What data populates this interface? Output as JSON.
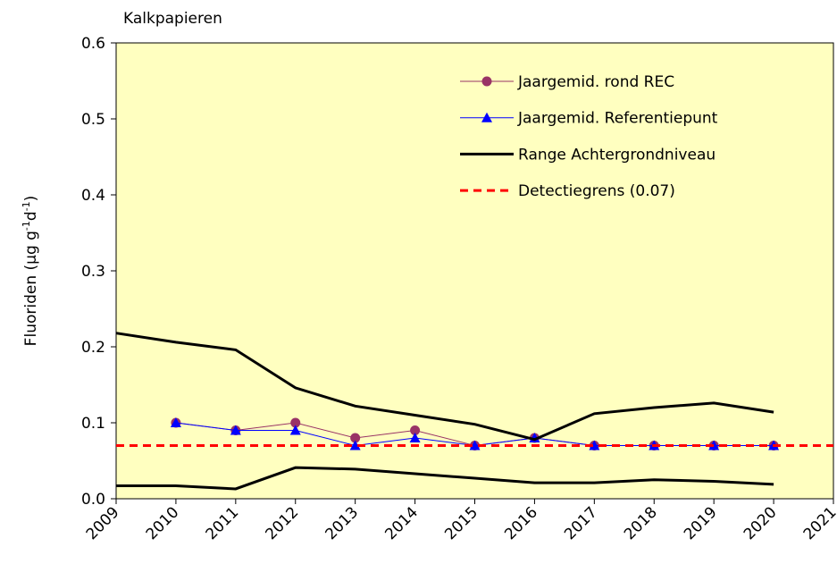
{
  "chart_data": {
    "type": "line",
    "title": "Kalkpapieren",
    "ylabel": [
      "Fluoriden  (µg g",
      "-1",
      "d",
      "-1",
      ")"
    ],
    "xlim": [
      2009,
      2021
    ],
    "xticks": [
      2009,
      2010,
      2011,
      2012,
      2013,
      2014,
      2015,
      2016,
      2017,
      2018,
      2019,
      2020,
      2021
    ],
    "ylim": [
      0,
      0.6
    ],
    "yticks": [
      {
        "value": 0,
        "label": "0.0"
      },
      0.1,
      0.2,
      0.3,
      0.4,
      0.5,
      0.6
    ],
    "background": "#ffffc0",
    "series": [
      {
        "name": "Jaargemid. rond REC",
        "color": "#993366",
        "marker": "circle",
        "dash": false,
        "width": 1,
        "x": [
          2010,
          2011,
          2012,
          2013,
          2014,
          2015,
          2016,
          2017,
          2018,
          2019,
          2020
        ],
        "values": [
          0.1,
          0.09,
          0.1,
          0.08,
          0.09,
          0.07,
          0.08,
          0.07,
          0.07,
          0.07,
          0.07
        ]
      },
      {
        "name": "Jaargemid. Referentiepunt",
        "color": "#0000ff",
        "marker": "triangle",
        "dash": false,
        "width": 1,
        "x": [
          2010,
          2011,
          2012,
          2013,
          2014,
          2015,
          2016,
          2017,
          2018,
          2019,
          2020
        ],
        "values": [
          0.1,
          0.09,
          0.09,
          0.07,
          0.08,
          0.07,
          0.08,
          0.07,
          0.07,
          0.07,
          0.07
        ]
      },
      {
        "name": "Range Achtergrondniveau",
        "color": "#000000",
        "marker": "none",
        "dash": false,
        "width": 3,
        "x": [
          2009,
          2010,
          2011,
          2012,
          2013,
          2014,
          2015,
          2016,
          2017,
          2018,
          2019,
          2020
        ],
        "values": [
          0.218,
          0.206,
          0.196,
          0.146,
          0.122,
          0.11,
          0.098,
          0.078,
          0.112,
          0.12,
          0.126,
          0.114
        ],
        "values_low": [
          0.017,
          0.017,
          0.013,
          0.041,
          0.039,
          0.033,
          0.027,
          0.021,
          0.021,
          0.025,
          0.023,
          0.019
        ]
      },
      {
        "name": "Detectiegrens (0.07)",
        "color": "#ff0000",
        "marker": "none",
        "dash": true,
        "width": 3,
        "x": [
          2009,
          2021
        ],
        "values": [
          0.07,
          0.07
        ]
      }
    ]
  }
}
